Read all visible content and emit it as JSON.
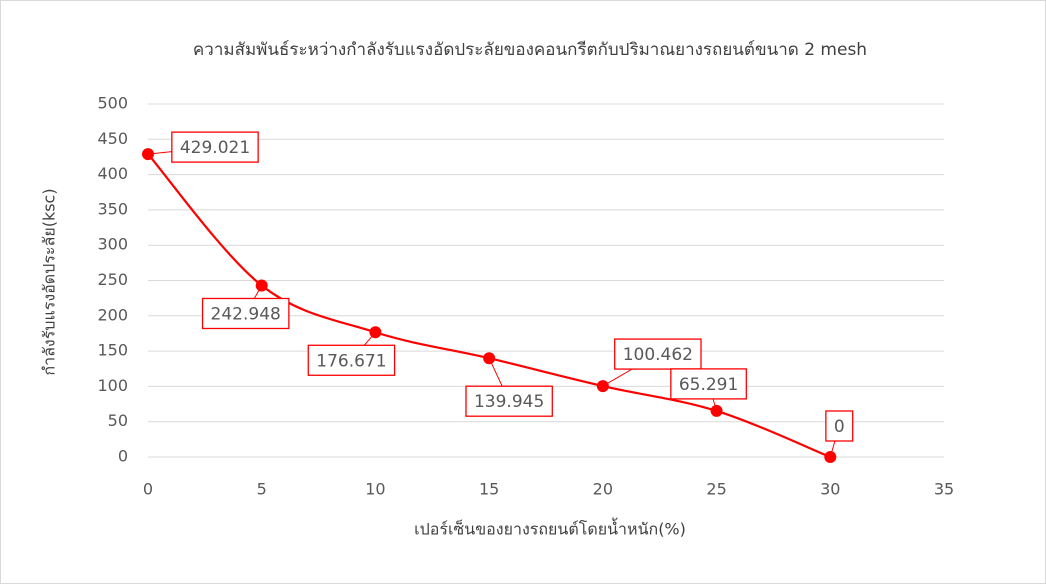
{
  "chart_data": {
    "type": "line",
    "title": "ความสัมพันธ์ระหว่างกำลังรับแรงอัดประลัยของคอนกรีตกับปริมาณยางรถยนต์ขนาด 2 mesh",
    "x_label": "เปอร์เซ็นของยางรถยนต์โดยน้ำหนัก(%)",
    "y_label": "กำลังรับแรงอัดประลัย(ksc)",
    "x": [
      0,
      5,
      10,
      15,
      20,
      25,
      30
    ],
    "series": [
      {
        "name": "กำลังรับแรงอัดประลัย",
        "color": "#ff0000",
        "values": [
          429.021,
          242.948,
          176.671,
          139.945,
          100.462,
          65.291,
          0
        ]
      }
    ],
    "xlim": [
      0,
      35
    ],
    "xticks": [
      0,
      5,
      10,
      15,
      20,
      25,
      30,
      35
    ],
    "ylim": [
      0,
      500
    ],
    "yticks": [
      0,
      50,
      100,
      150,
      200,
      250,
      300,
      350,
      400,
      450,
      500
    ],
    "grid": true,
    "smooth": true
  }
}
